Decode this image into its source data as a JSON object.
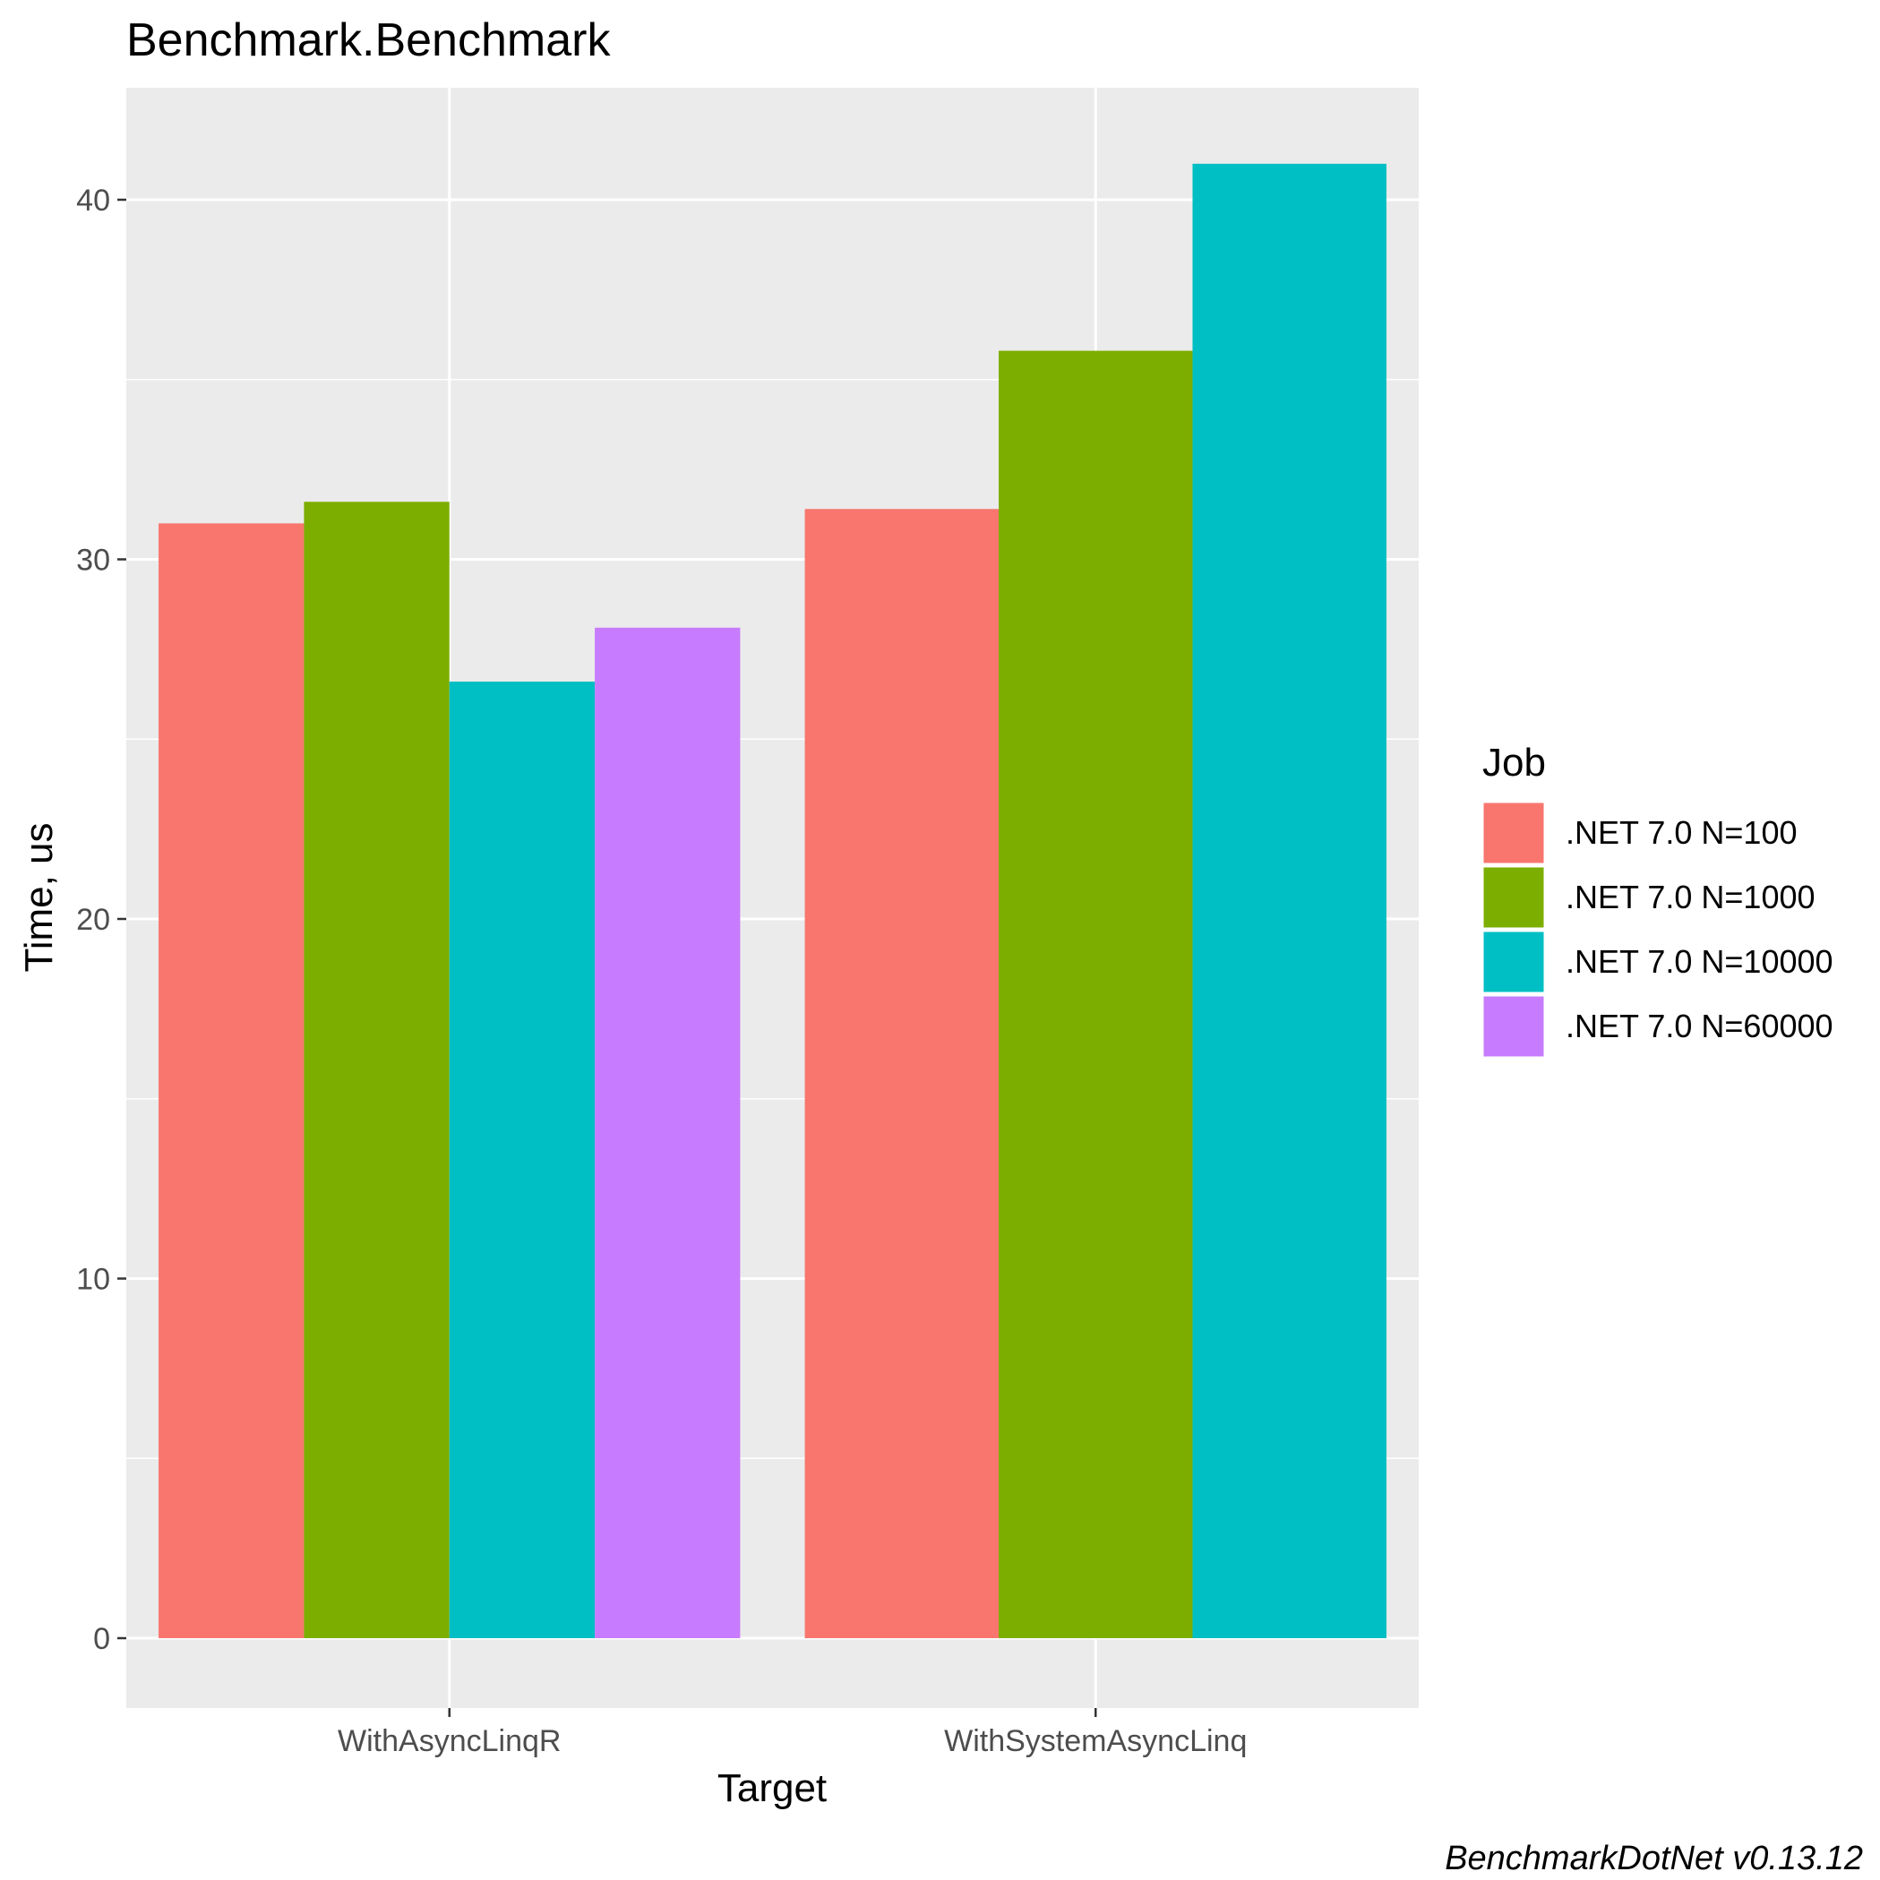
{
  "chart_data": {
    "type": "bar",
    "title": "Benchmark.Benchmark",
    "xlabel": "Target",
    "ylabel": "Time, us",
    "caption": "BenchmarkDotNet v0.13.12",
    "categories": [
      "WithAsyncLinqR",
      "WithSystemAsyncLinq"
    ],
    "yticks": [
      "0",
      "10",
      "20",
      "30",
      "40"
    ],
    "ylim": [
      -2,
      43
    ],
    "grid": true,
    "legend": {
      "title": "Job",
      "placement": "right"
    },
    "series": [
      {
        "name": ".NET 7.0 N=100",
        "color": "#F8766D",
        "values": [
          31.0,
          31.4
        ]
      },
      {
        "name": ".NET 7.0 N=1000",
        "color": "#7CAE00",
        "values": [
          31.6,
          35.8
        ]
      },
      {
        "name": ".NET 7.0 N=10000",
        "color": "#00BFC4",
        "values": [
          26.6,
          41.0
        ]
      },
      {
        "name": ".NET 7.0 N=60000",
        "color": "#C77CFF",
        "values": [
          28.1,
          null
        ]
      }
    ]
  }
}
